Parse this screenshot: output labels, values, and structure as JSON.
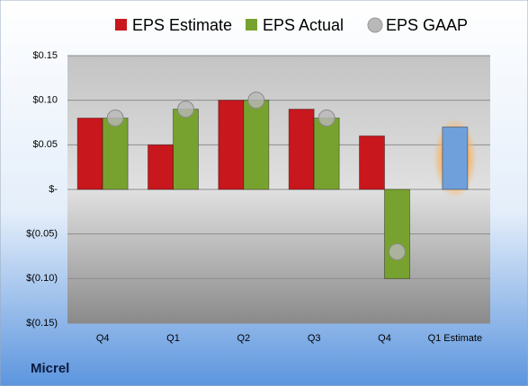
{
  "company": "Micrel",
  "chart_data": {
    "type": "bar",
    "categories": [
      "Q4",
      "Q1",
      "Q2",
      "Q3",
      "Q4",
      "Q1 Estimate"
    ],
    "series": [
      {
        "name": "EPS Estimate",
        "color": "#c8171d",
        "values": [
          0.08,
          0.05,
          0.1,
          0.09,
          0.06,
          0.07
        ]
      },
      {
        "name": "EPS Actual",
        "color": "#78a22f",
        "values": [
          0.08,
          0.09,
          0.1,
          0.08,
          -0.1,
          null
        ]
      },
      {
        "name": "EPS GAAP",
        "color": "#b8b8b8",
        "values": [
          0.08,
          0.09,
          0.1,
          0.08,
          -0.07,
          null
        ],
        "marker": "circle"
      }
    ],
    "highlight_color": "#6fa0dc",
    "ylim": [
      -0.15,
      0.15
    ],
    "yticks": [
      {
        "value": 0.15,
        "label": "$0.15"
      },
      {
        "value": 0.1,
        "label": "$0.10"
      },
      {
        "value": 0.05,
        "label": "$0.05"
      },
      {
        "value": 0,
        "label": "$-"
      },
      {
        "value": -0.05,
        "label": "$(0.05)"
      },
      {
        "value": -0.1,
        "label": "$(0.10)"
      },
      {
        "value": -0.15,
        "label": "$(0.15)"
      }
    ],
    "grid": true
  }
}
